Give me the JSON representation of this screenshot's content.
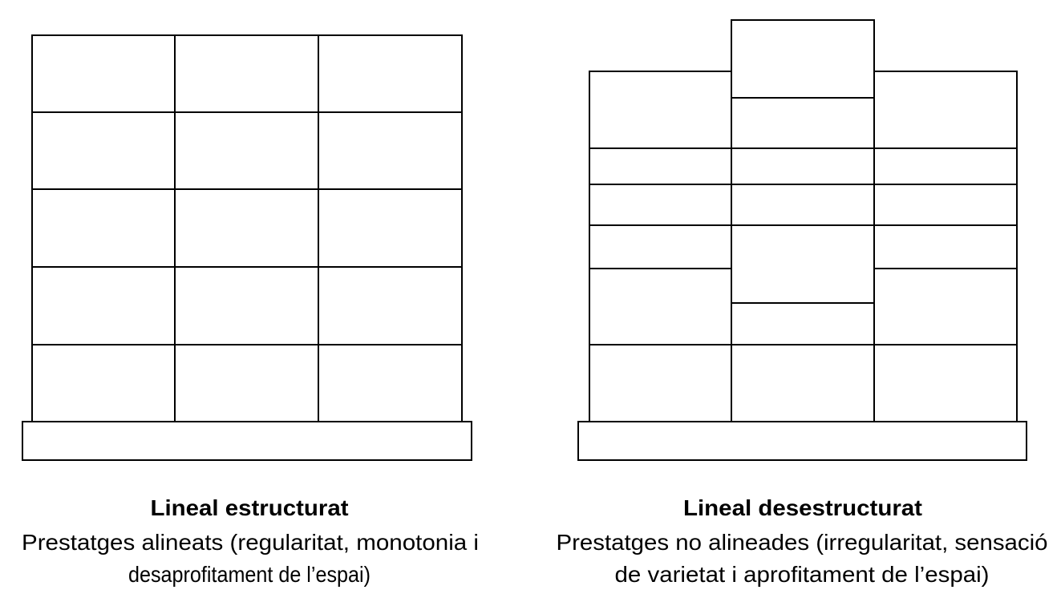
{
  "panels": [
    {
      "title": "Lineal estructurat",
      "description": [
        "Prestatges alineats (regularitat, monotonia i",
        "desaprofitament de l’espai)"
      ]
    },
    {
      "title": "Lineal desestructurat",
      "description": [
        "Prestatges no alineades (irregularitat, sensació",
        "de varietat i aprofitament de l’espai)"
      ]
    }
  ]
}
